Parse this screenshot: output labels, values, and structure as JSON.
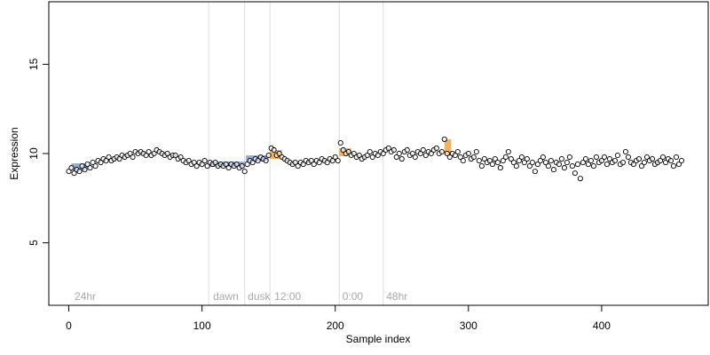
{
  "chart_data": {
    "type": "scatter",
    "title": "",
    "xlabel": "Sample index",
    "ylabel": "Expression",
    "xlim": [
      -15,
      480
    ],
    "ylim": [
      1.5,
      18.5
    ],
    "x_ticks": [
      0,
      100,
      200,
      300,
      400
    ],
    "y_ticks": [
      5,
      10,
      15
    ],
    "grid": false,
    "colors": {
      "points_stroke": "#000000",
      "points_fill": "#ffffff",
      "band_blue": "#7f9fd1",
      "band_orange": "#f2a33a",
      "vline": "#dcdcdc",
      "annotation": "#a9a9a9"
    },
    "annotations": [
      {
        "label": "24hr",
        "x": 3
      },
      {
        "label": "dawn",
        "x": 107
      },
      {
        "label": "dusk",
        "x": 133
      },
      {
        "label": "12:00",
        "x": 153
      },
      {
        "label": "0:00",
        "x": 204
      },
      {
        "label": "48hr",
        "x": 237
      }
    ],
    "vlines": [
      105,
      132,
      151,
      203,
      236
    ],
    "bands": [
      {
        "color": "blue",
        "segments": [
          [
            2,
            14,
            9.05,
            9.45
          ],
          [
            105,
            132,
            9.25,
            9.55
          ],
          [
            133,
            150,
            9.55,
            9.9
          ]
        ]
      },
      {
        "color": "orange",
        "segments": [
          [
            151,
            160,
            9.7,
            10.2
          ],
          [
            203,
            212,
            9.85,
            10.3
          ],
          [
            282,
            287,
            9.9,
            10.8
          ]
        ]
      }
    ],
    "series": [
      {
        "x": [
          0,
          2,
          4,
          6,
          8,
          10,
          12,
          14,
          16,
          18,
          20,
          22,
          24,
          26,
          28,
          30,
          32,
          34,
          36,
          38,
          40,
          42,
          44,
          46,
          48,
          50,
          52,
          54,
          56,
          58,
          60,
          62,
          64,
          66,
          68,
          70,
          72,
          74,
          76,
          78,
          80,
          82,
          84,
          86,
          88,
          90,
          92,
          94,
          96,
          98,
          100,
          102,
          104,
          106,
          108,
          110,
          112,
          114,
          116,
          118,
          120,
          122,
          124,
          126,
          128,
          130,
          132,
          134,
          136,
          138,
          140,
          142,
          144,
          146,
          148,
          150,
          152,
          154,
          156,
          158,
          160,
          162,
          164,
          166,
          168,
          170,
          172,
          174,
          176,
          178,
          180,
          182,
          184,
          186,
          188,
          190,
          192,
          194,
          196,
          198,
          200,
          202,
          204,
          206,
          208,
          210,
          212,
          214,
          216,
          218,
          220,
          222,
          224,
          226,
          228,
          230,
          232,
          234,
          236,
          238,
          240,
          242,
          244,
          246,
          248,
          250,
          252,
          254,
          256,
          258,
          260,
          262,
          264,
          266,
          268,
          270,
          272,
          274,
          276,
          278,
          280,
          282,
          284,
          286,
          288,
          290,
          292,
          294,
          296,
          298,
          300,
          302,
          304,
          306,
          308,
          310,
          312,
          314,
          316,
          318,
          320,
          322,
          324,
          326,
          328,
          330,
          332,
          334,
          336,
          338,
          340,
          342,
          344,
          346,
          348,
          350,
          352,
          354,
          356,
          358,
          360,
          362,
          364,
          366,
          368,
          370,
          372,
          374,
          376,
          378,
          380,
          382,
          384,
          386,
          388,
          390,
          392,
          394,
          396,
          398,
          400,
          402,
          404,
          406,
          408,
          410,
          412,
          414,
          416,
          418,
          420,
          422,
          424,
          426,
          428,
          430,
          432,
          434,
          436,
          438,
          440,
          442,
          444,
          446,
          448,
          450,
          452,
          454,
          456,
          458,
          460
        ],
        "y": [
          9.0,
          9.2,
          8.9,
          9.1,
          9.0,
          9.3,
          9.1,
          9.4,
          9.2,
          9.5,
          9.3,
          9.6,
          9.5,
          9.7,
          9.6,
          9.8,
          9.6,
          9.7,
          9.8,
          9.7,
          9.9,
          9.8,
          9.9,
          10.0,
          9.8,
          10.1,
          10.0,
          10.1,
          10.0,
          9.9,
          10.1,
          9.9,
          10.0,
          10.2,
          10.1,
          10.0,
          9.9,
          10.0,
          9.8,
          9.9,
          9.9,
          9.7,
          9.8,
          9.6,
          9.5,
          9.6,
          9.4,
          9.5,
          9.3,
          9.5,
          9.4,
          9.6,
          9.3,
          9.5,
          9.4,
          9.5,
          9.3,
          9.4,
          9.3,
          9.4,
          9.2,
          9.4,
          9.3,
          9.4,
          9.2,
          9.3,
          9.0,
          9.4,
          9.6,
          9.5,
          9.7,
          9.6,
          9.8,
          9.7,
          9.6,
          9.9,
          10.3,
          10.2,
          9.9,
          10.0,
          9.8,
          9.7,
          9.6,
          9.5,
          9.4,
          9.5,
          9.3,
          9.5,
          9.4,
          9.6,
          9.5,
          9.6,
          9.4,
          9.6,
          9.5,
          9.7,
          9.6,
          9.5,
          9.7,
          9.6,
          9.8,
          9.6,
          10.6,
          10.2,
          10.0,
          10.1,
          9.9,
          10.0,
          9.8,
          9.9,
          9.7,
          9.8,
          9.9,
          10.1,
          9.8,
          10.0,
          9.9,
          10.1,
          10.0,
          10.2,
          10.3,
          10.1,
          10.2,
          9.8,
          10.0,
          9.7,
          10.1,
          10.2,
          9.9,
          10.0,
          9.8,
          10.1,
          10.0,
          10.2,
          9.9,
          10.1,
          10.0,
          10.2,
          10.3,
          10.0,
          10.1,
          10.8,
          10.0,
          9.8,
          10.0,
          9.9,
          10.1,
          9.8,
          9.6,
          9.9,
          10.0,
          9.7,
          9.8,
          10.1,
          9.6,
          9.3,
          9.7,
          9.5,
          9.6,
          9.4,
          9.7,
          9.5,
          9.2,
          9.6,
          9.8,
          10.1,
          9.7,
          9.5,
          9.3,
          9.6,
          9.8,
          9.5,
          9.7,
          9.3,
          9.5,
          9.0,
          9.4,
          9.6,
          9.8,
          9.5,
          9.3,
          9.6,
          9.1,
          9.5,
          9.4,
          9.7,
          9.2,
          9.5,
          9.8,
          9.3,
          8.9,
          9.4,
          8.6,
          9.5,
          9.7,
          9.4,
          9.6,
          9.3,
          9.8,
          9.5,
          9.6,
          9.8,
          9.4,
          9.7,
          9.5,
          9.6,
          9.9,
          9.4,
          9.5,
          10.1,
          9.8,
          9.5,
          9.4,
          9.6,
          9.7,
          9.3,
          9.5,
          9.8,
          9.6,
          9.7,
          9.4,
          9.5,
          9.6,
          9.8,
          9.5,
          9.7,
          9.6,
          9.3,
          9.8,
          9.4,
          9.6
        ]
      }
    ]
  }
}
